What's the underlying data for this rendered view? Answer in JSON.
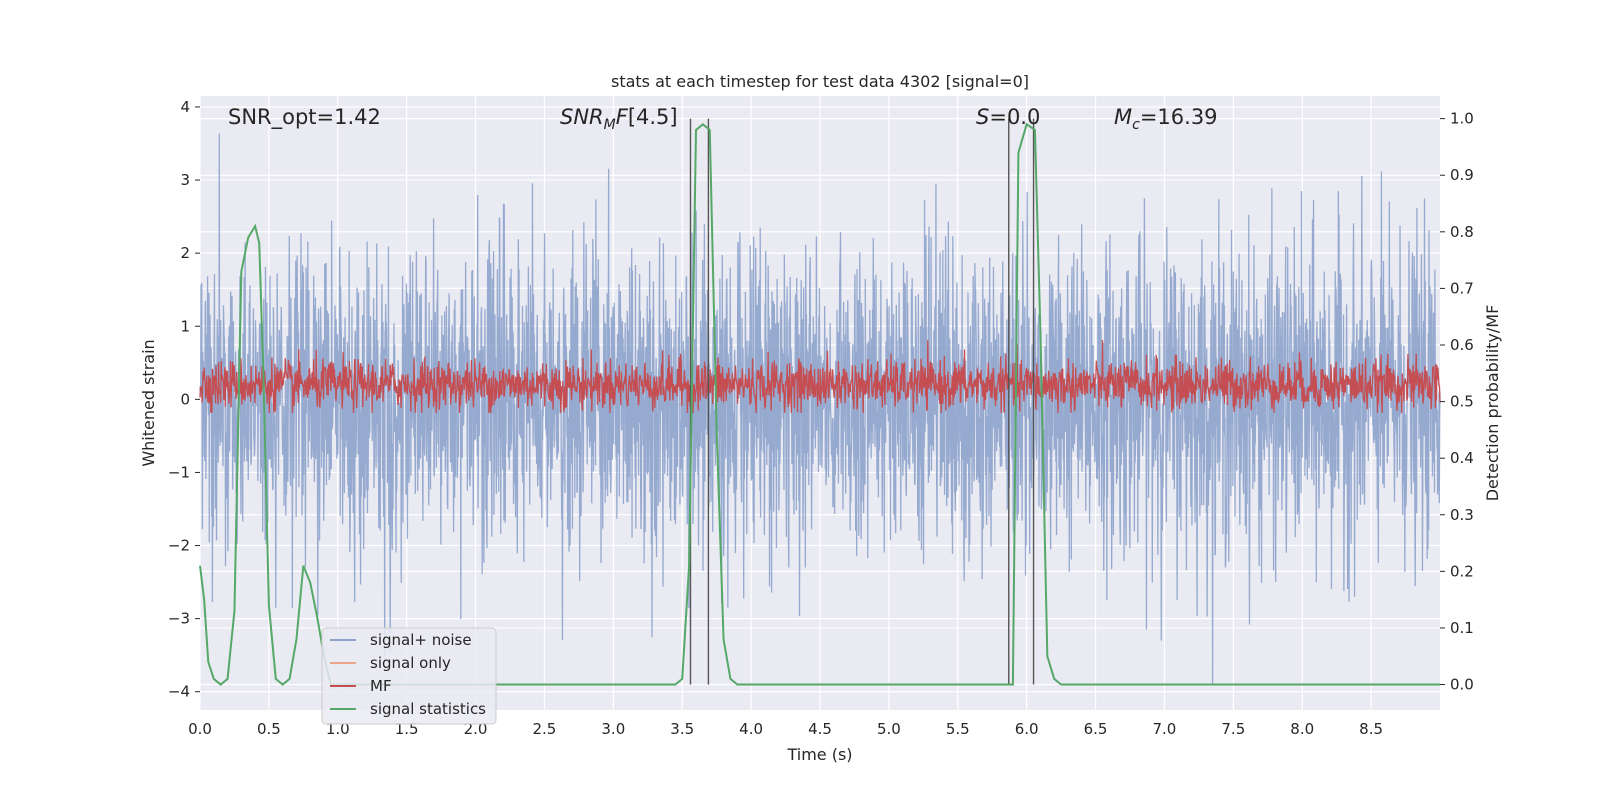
{
  "chart_data": {
    "type": "line",
    "title": "stats at each timestep for test data 4302 [signal=0]",
    "xlabel": "Time (s)",
    "ylabel": "Whitened strain",
    "y2label": "Detection probability/MF",
    "xlim": [
      0.0,
      9.0
    ],
    "ylim": [
      -4.25,
      4.15
    ],
    "y2lim": [
      -0.045,
      1.04
    ],
    "xticks": [
      "0.0",
      "0.5",
      "1.0",
      "1.5",
      "2.0",
      "2.5",
      "3.0",
      "3.5",
      "4.0",
      "4.5",
      "5.0",
      "5.5",
      "6.0",
      "6.5",
      "7.0",
      "7.5",
      "8.0",
      "8.5"
    ],
    "yticks": [
      "−4",
      "−3",
      "−2",
      "−1",
      "0",
      "1",
      "2",
      "3",
      "4"
    ],
    "y2ticks": [
      "0.0",
      "0.1",
      "0.2",
      "0.3",
      "0.4",
      "0.5",
      "0.6",
      "0.7",
      "0.8",
      "0.9",
      "1.0"
    ],
    "annotations": {
      "snr_opt": "SNR_opt=1.42",
      "snr_mf": "[4.5]",
      "s": "=0.0",
      "mc": "=16.39"
    },
    "vlines": [
      3.56,
      3.69,
      5.87,
      6.05
    ],
    "series": [
      {
        "name": "signal+ noise",
        "color": "#8da3cc",
        "axis": "left",
        "amplitude": "noise, ±~3"
      },
      {
        "name": "signal only",
        "color": "#e8a58a",
        "axis": "left",
        "values": []
      },
      {
        "name": "MF",
        "color": "#c44e52",
        "axis": "right"
      },
      {
        "name": "signal statistics",
        "color": "#55a868",
        "axis": "right",
        "x": [
          0.0,
          0.03,
          0.06,
          0.1,
          0.15,
          0.2,
          0.25,
          0.3,
          0.35,
          0.4,
          0.43,
          0.46,
          0.5,
          0.55,
          0.6,
          0.65,
          0.7,
          0.75,
          0.8,
          0.85,
          0.9,
          0.95,
          1.0,
          1.1,
          1.5,
          2.0,
          2.5,
          3.0,
          3.3,
          3.45,
          3.5,
          3.55,
          3.6,
          3.65,
          3.7,
          3.75,
          3.8,
          3.85,
          3.9,
          4.0,
          4.2,
          4.3,
          5.0,
          5.5,
          5.84,
          5.87,
          5.9,
          5.94,
          6.0,
          6.06,
          6.1,
          6.15,
          6.2,
          6.25,
          6.3,
          7.0,
          8.0,
          9.0
        ],
        "values": [
          0.21,
          0.15,
          0.04,
          0.01,
          0.0,
          0.01,
          0.13,
          0.73,
          0.79,
          0.81,
          0.78,
          0.55,
          0.14,
          0.01,
          0.0,
          0.01,
          0.08,
          0.21,
          0.18,
          0.12,
          0.05,
          0.0,
          0.0,
          0.0,
          0.0,
          0.0,
          0.0,
          0.0,
          0.0,
          0.0,
          0.01,
          0.21,
          0.98,
          0.99,
          0.98,
          0.45,
          0.08,
          0.01,
          0.0,
          0.0,
          0.0,
          0.0,
          0.0,
          0.0,
          0.0,
          0.0,
          0.0,
          0.94,
          0.99,
          0.98,
          0.62,
          0.05,
          0.01,
          0.0,
          0.0,
          0.0,
          0.0,
          0.0
        ]
      }
    ]
  }
}
